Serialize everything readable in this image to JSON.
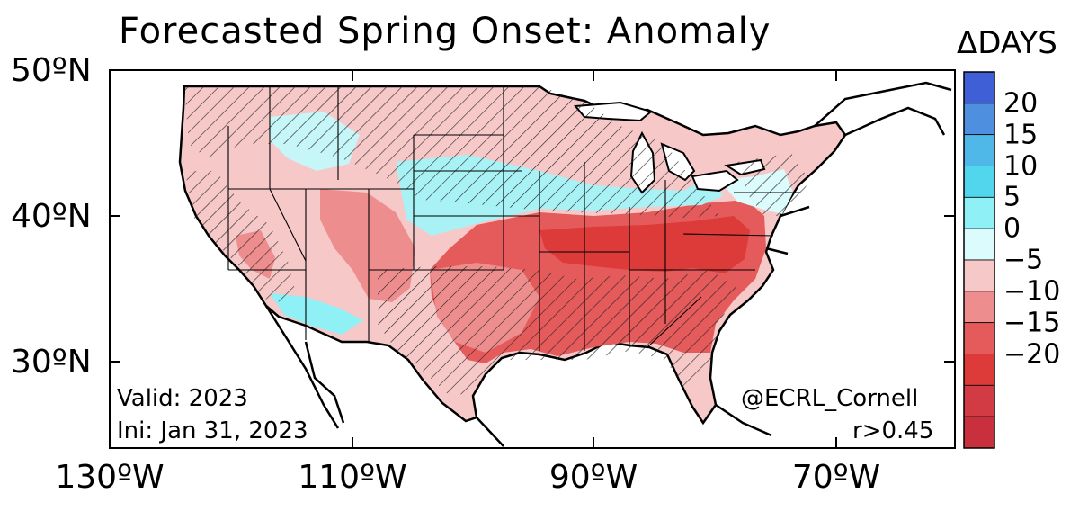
{
  "title": "Forecasted Spring Onset: Anomaly",
  "lat_labels": [
    "50ºN",
    "40ºN",
    "30ºN"
  ],
  "lon_labels": [
    "130ºW",
    "110ºW",
    "90ºW",
    "70ºW"
  ],
  "colorbar": {
    "title": "ΔDAYS",
    "ticks": [
      "20",
      "15",
      "10",
      "5",
      "0",
      "−5",
      "−10",
      "−15",
      "−20"
    ],
    "colors": [
      "#3f5fd6",
      "#4f8fe0",
      "#4fb8e8",
      "#52d6ee",
      "#8ff0f5",
      "#dcfbfc",
      "#f6c8c8",
      "#ee8d8d",
      "#e55a5a",
      "#dd3a3a",
      "#d23a44",
      "#c9303e"
    ]
  },
  "annotations": {
    "valid": "Valid: 2023",
    "init": "Ini: Jan 31, 2023",
    "credit": "@ECRL_Cornell",
    "threshold": "r>0.45"
  }
}
